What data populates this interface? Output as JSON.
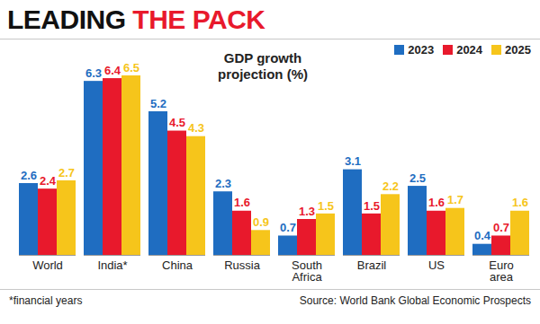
{
  "chart_data": {
    "type": "bar",
    "title": "LEADING THE PACK",
    "subtitle": "GDP growth projection (%)",
    "categories": [
      "World",
      "India*",
      "China",
      "Russia",
      "South Africa",
      "Brazil",
      "US",
      "Euro area"
    ],
    "series": [
      {
        "name": "2023",
        "color": "#1f6dc1",
        "values": [
          2.6,
          6.3,
          5.2,
          2.3,
          0.7,
          3.1,
          2.5,
          0.4
        ]
      },
      {
        "name": "2024",
        "color": "#e8192c",
        "values": [
          2.4,
          6.4,
          4.5,
          1.6,
          1.3,
          1.5,
          1.6,
          0.7
        ]
      },
      {
        "name": "2025",
        "color": "#f6c51b",
        "values": [
          2.7,
          6.5,
          4.3,
          0.9,
          1.5,
          2.2,
          1.7,
          1.6
        ]
      }
    ],
    "ylim": [
      0,
      6.5
    ],
    "grid": false,
    "legend": "top-right",
    "data_labels": true,
    "tick_labels": "x",
    "annotations": [
      "*financial years",
      "Source: World Bank Global Economic Prospects"
    ]
  }
}
